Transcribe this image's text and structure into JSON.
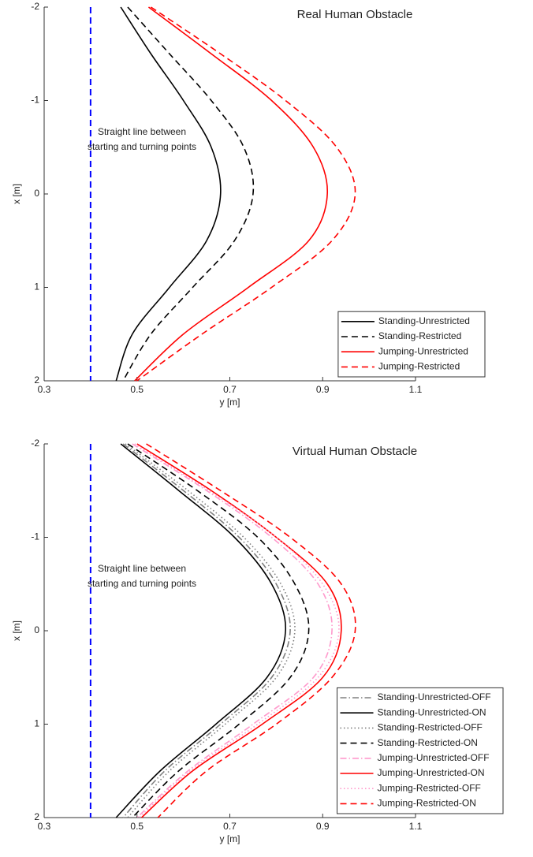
{
  "chart_data": [
    {
      "type": "line",
      "title": "Real Human Obstacle",
      "xlabel": "x [m]",
      "ylabel": "y [m]",
      "orientation": "vertical",
      "x": [
        -2,
        -1.5,
        -1,
        -0.5,
        0,
        0.5,
        1,
        1.5,
        2
      ],
      "xlim": [
        -2,
        2
      ],
      "xticks": [
        -2,
        -1,
        0,
        1,
        2
      ],
      "ylim": [
        0.3,
        1.1
      ],
      "yticks": [
        0.3,
        0.5,
        0.7,
        0.9,
        1.1
      ],
      "reference_line": {
        "value": 0.4,
        "color": "#0000ff",
        "label": [
          "Straight line between",
          "starting and turning points"
        ]
      },
      "legend": "lower right",
      "series": [
        {
          "name": "Standing-Unrestricted",
          "color": "#000000",
          "dash": "solid",
          "values": [
            0.465,
            0.53,
            0.6,
            0.66,
            0.68,
            0.65,
            0.57,
            0.49,
            0.455
          ]
        },
        {
          "name": "Standing-Restricted",
          "color": "#000000",
          "dash": "dashed",
          "values": [
            0.48,
            0.57,
            0.66,
            0.73,
            0.75,
            0.71,
            0.62,
            0.53,
            0.47
          ]
        },
        {
          "name": "Jumping-Unrestricted",
          "color": "#ff0000",
          "dash": "solid",
          "values": [
            0.525,
            0.66,
            0.79,
            0.88,
            0.91,
            0.87,
            0.74,
            0.6,
            0.495
          ]
        },
        {
          "name": "Jumping-Restricted",
          "color": "#ff0000",
          "dash": "dashed",
          "values": [
            0.53,
            0.68,
            0.82,
            0.93,
            0.97,
            0.92,
            0.79,
            0.64,
            0.5
          ]
        }
      ]
    },
    {
      "type": "line",
      "title": "Virtual Human Obstacle",
      "xlabel": "x [m]",
      "ylabel": "y [m]",
      "orientation": "vertical",
      "x": [
        -2,
        -1.5,
        -1,
        -0.5,
        0,
        0.5,
        1,
        1.5,
        2
      ],
      "xlim": [
        -2,
        2
      ],
      "xticks": [
        -2,
        -1,
        0,
        1,
        2
      ],
      "ylim": [
        0.3,
        1.1
      ],
      "yticks": [
        0.3,
        0.5,
        0.7,
        0.9,
        1.1
      ],
      "reference_line": {
        "value": 0.4,
        "color": "#0000ff",
        "label": [
          "Straight line between",
          "starting and turning points"
        ]
      },
      "legend": "lower right",
      "series": [
        {
          "name": "Standing-Unrestricted-OFF",
          "color": "#808080",
          "dash": "dashdot",
          "values": [
            0.47,
            0.6,
            0.72,
            0.8,
            0.83,
            0.79,
            0.68,
            0.56,
            0.47
          ]
        },
        {
          "name": "Standing-Unrestricted-ON",
          "color": "#000000",
          "dash": "solid",
          "values": [
            0.465,
            0.59,
            0.71,
            0.79,
            0.82,
            0.78,
            0.67,
            0.55,
            0.455
          ]
        },
        {
          "name": "Standing-Restricted-OFF",
          "color": "#808080",
          "dash": "dotted",
          "values": [
            0.475,
            0.61,
            0.73,
            0.81,
            0.84,
            0.8,
            0.69,
            0.57,
            0.48
          ]
        },
        {
          "name": "Standing-Restricted-ON",
          "color": "#000000",
          "dash": "dashed",
          "values": [
            0.48,
            0.63,
            0.76,
            0.84,
            0.87,
            0.83,
            0.72,
            0.59,
            0.49
          ]
        },
        {
          "name": "Jumping-Unrestricted-OFF",
          "color": "#ff99cc",
          "dash": "dashdot",
          "values": [
            0.49,
            0.65,
            0.79,
            0.89,
            0.92,
            0.88,
            0.75,
            0.61,
            0.5
          ]
        },
        {
          "name": "Jumping-Unrestricted-ON",
          "color": "#ff0000",
          "dash": "solid",
          "values": [
            0.5,
            0.66,
            0.8,
            0.91,
            0.94,
            0.9,
            0.77,
            0.62,
            0.51
          ]
        },
        {
          "name": "Jumping-Restricted-OFF",
          "color": "#ff99cc",
          "dash": "dotted",
          "values": [
            0.495,
            0.655,
            0.8,
            0.9,
            0.935,
            0.89,
            0.76,
            0.615,
            0.505
          ]
        },
        {
          "name": "Jumping-Restricted-ON",
          "color": "#ff0000",
          "dash": "dashed",
          "values": [
            0.52,
            0.68,
            0.83,
            0.94,
            0.97,
            0.92,
            0.8,
            0.65,
            0.545
          ]
        }
      ]
    }
  ]
}
